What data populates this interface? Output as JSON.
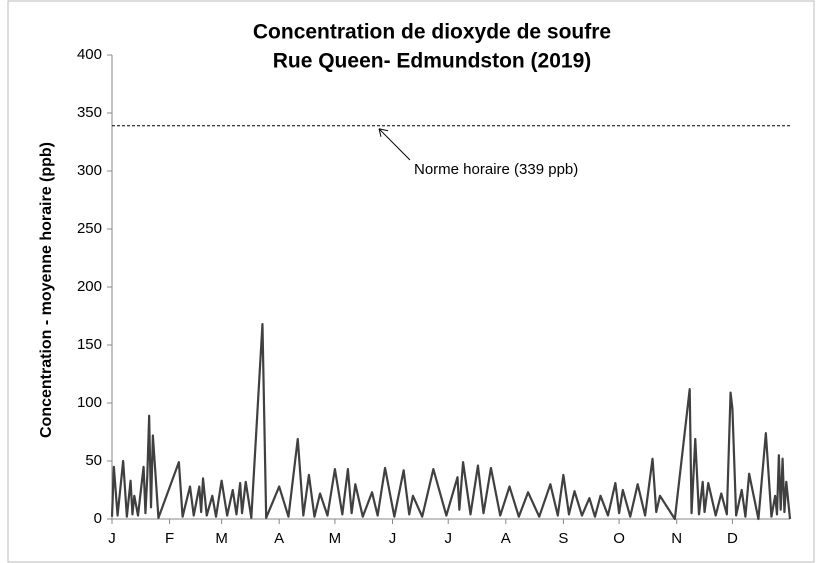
{
  "chart_data": {
    "type": "line",
    "title": [
      "Concentration de dioxyde de soufre",
      "Rue Queen- Edmundston (2019)"
    ],
    "y_label": "Concentration - moyenne horaire (ppb)",
    "annotation": "Norme horaire (339 ppb)",
    "threshold": 339,
    "color": "#404040",
    "xlim": [
      0,
      365
    ],
    "xticks": [
      {
        "value": 0,
        "label": "J"
      },
      {
        "value": 31,
        "label": "F"
      },
      {
        "value": 59,
        "label": "M"
      },
      {
        "value": 90,
        "label": "A"
      },
      {
        "value": 120,
        "label": "M"
      },
      {
        "value": 151,
        "label": "J"
      },
      {
        "value": 181,
        "label": "J"
      },
      {
        "value": 212,
        "label": "A"
      },
      {
        "value": 243,
        "label": "S"
      },
      {
        "value": 273,
        "label": "O"
      },
      {
        "value": 304,
        "label": "N"
      },
      {
        "value": 334,
        "label": "D"
      }
    ],
    "ylim": [
      0,
      400
    ],
    "yticks": [
      0,
      50,
      100,
      150,
      200,
      250,
      300,
      350,
      400
    ],
    "x": [
      0,
      1,
      3,
      6,
      8,
      10,
      11,
      12,
      14,
      17,
      18,
      19,
      20,
      21,
      22,
      25,
      36,
      38,
      42,
      44,
      47,
      48,
      49,
      51,
      54,
      56,
      59,
      62,
      65,
      67,
      69,
      70,
      72,
      75,
      81,
      83,
      90,
      95,
      100,
      103,
      106,
      109,
      112,
      116,
      120,
      124,
      127,
      129,
      131,
      135,
      140,
      143,
      147,
      152,
      157,
      160,
      162,
      167,
      173,
      180,
      186,
      187,
      189,
      193,
      197,
      200,
      204,
      209,
      214,
      219,
      224,
      230,
      236,
      240,
      243,
      246,
      249,
      253,
      257,
      260,
      263,
      267,
      271,
      273,
      275,
      279,
      283,
      287,
      291,
      293,
      295,
      303,
      311,
      312,
      314,
      316,
      318,
      319,
      321,
      325,
      328,
      331,
      333,
      334,
      336,
      339,
      341,
      343,
      348,
      352,
      355,
      357,
      358,
      359,
      360,
      361,
      362,
      363,
      365
    ],
    "values": [
      2,
      45,
      3,
      50,
      2,
      33,
      4,
      20,
      3,
      45,
      5,
      37,
      89,
      10,
      72,
      1,
      49,
      2,
      28,
      3,
      28,
      6,
      35,
      3,
      20,
      2,
      33,
      3,
      25,
      4,
      31,
      5,
      32,
      1,
      168,
      1,
      28,
      2,
      69,
      3,
      38,
      2,
      22,
      3,
      43,
      4,
      43,
      5,
      30,
      2,
      23,
      3,
      44,
      2,
      42,
      4,
      20,
      2,
      43,
      3,
      36,
      8,
      49,
      4,
      46,
      5,
      44,
      3,
      28,
      2,
      23,
      2,
      30,
      3,
      38,
      4,
      24,
      3,
      18,
      2,
      20,
      3,
      31,
      5,
      25,
      2,
      30,
      3,
      52,
      6,
      20,
      0,
      112,
      5,
      69,
      4,
      32,
      6,
      31,
      3,
      22,
      4,
      109,
      95,
      3,
      25,
      2,
      39,
      0,
      74,
      2,
      20,
      4,
      55,
      8,
      52,
      6,
      32,
      0
    ]
  }
}
